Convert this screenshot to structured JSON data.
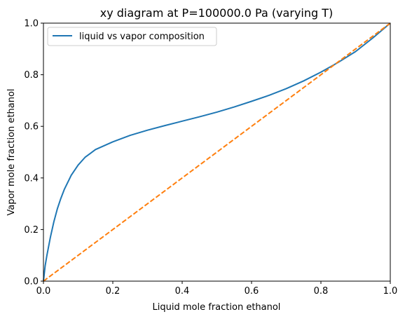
{
  "chart_data": {
    "type": "line",
    "title": "xy diagram at P=100000.0 Pa (varying T)",
    "xlabel": "Liquid mole fraction ethanol",
    "ylabel": "Vapor mole fraction ethanol",
    "xlim": [
      0.0,
      1.0
    ],
    "ylim": [
      0.0,
      1.0
    ],
    "xticks": [
      "0.0",
      "0.2",
      "0.4",
      "0.6",
      "0.8",
      "1.0"
    ],
    "yticks": [
      "0.0",
      "0.2",
      "0.4",
      "0.6",
      "0.8",
      "1.0"
    ],
    "grid": false,
    "legend_position": "top-left",
    "series": [
      {
        "name": "liquid vs vapor composition",
        "color": "#1f77b4",
        "style": "solid",
        "x": [
          0.0,
          0.005,
          0.01,
          0.02,
          0.03,
          0.04,
          0.05,
          0.06,
          0.08,
          0.1,
          0.12,
          0.15,
          0.2,
          0.25,
          0.3,
          0.35,
          0.4,
          0.45,
          0.5,
          0.55,
          0.6,
          0.65,
          0.7,
          0.75,
          0.8,
          0.85,
          0.9,
          0.95,
          1.0
        ],
        "y": [
          0.0,
          0.06,
          0.1,
          0.17,
          0.23,
          0.28,
          0.32,
          0.355,
          0.41,
          0.45,
          0.48,
          0.51,
          0.54,
          0.565,
          0.585,
          0.603,
          0.62,
          0.637,
          0.655,
          0.675,
          0.697,
          0.72,
          0.746,
          0.776,
          0.81,
          0.848,
          0.89,
          0.943,
          1.0
        ]
      },
      {
        "name": "",
        "color": "#ff7f0e",
        "style": "dashed",
        "x": [
          0.0,
          1.0
        ],
        "y": [
          0.0,
          1.0
        ]
      }
    ]
  }
}
